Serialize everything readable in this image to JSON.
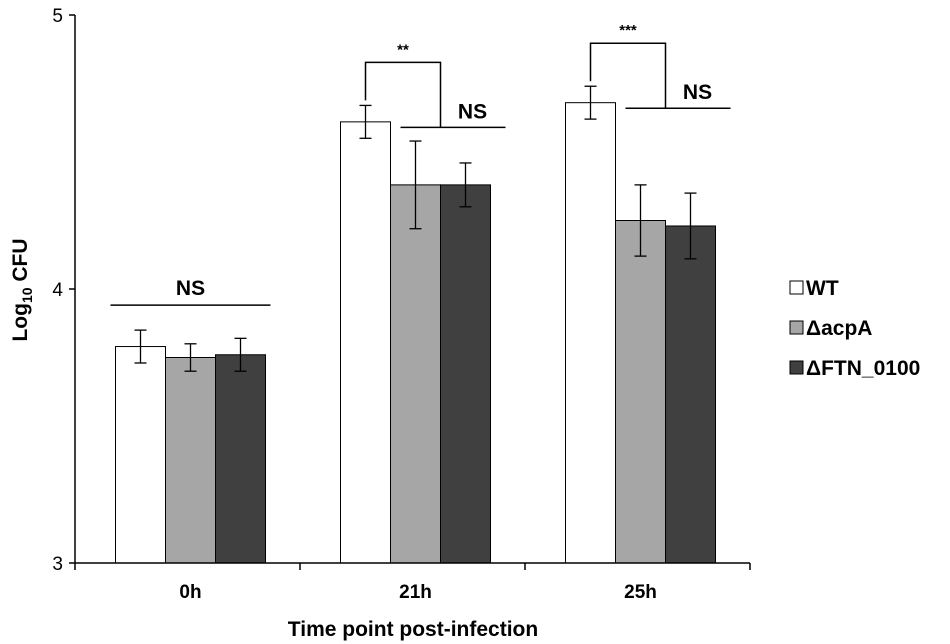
{
  "chart_data": {
    "type": "bar",
    "title": "",
    "xlabel": "Time point post-infection",
    "ylabel_main": "Log",
    "ylabel_sub": "10",
    "ylabel_tail": " CFU",
    "ylim": [
      3,
      5
    ],
    "yticks": [
      "3",
      "4",
      "5"
    ],
    "categories": [
      "0h",
      "21h",
      "25h"
    ],
    "series": [
      {
        "name": "WT",
        "color": "#ffffff",
        "values": [
          3.79,
          4.61,
          4.68
        ],
        "errors": [
          0.06,
          0.06,
          0.06
        ]
      },
      {
        "name": "ΔacpA",
        "color": "#a6a6a6",
        "values": [
          3.75,
          4.38,
          4.25
        ],
        "errors": [
          0.05,
          0.16,
          0.13
        ]
      },
      {
        "name": "ΔFTN_0100",
        "color": "#404040",
        "values": [
          3.76,
          4.38,
          4.23
        ],
        "errors": [
          0.06,
          0.08,
          0.12
        ]
      }
    ],
    "legend_position": "right",
    "annotations": {
      "ns_0h": "NS",
      "star_21h": "**",
      "ns_21h": "NS",
      "star_25h": "***",
      "ns_25h": "NS"
    }
  }
}
